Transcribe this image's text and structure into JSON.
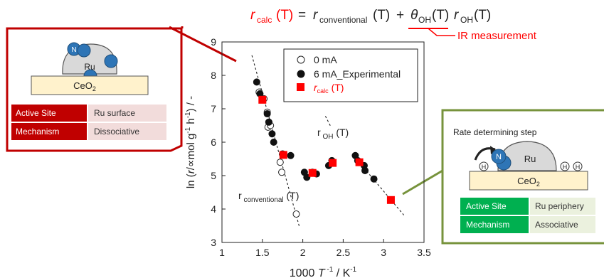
{
  "equation": {
    "lhs_symbol": "r",
    "lhs_sub": "calc",
    "lhs_arg": "(T)",
    "equals": "=",
    "term1_symbol": "r",
    "term1_sub": "conventional",
    "term1_arg": "(T)",
    "plus": "+",
    "term2_symbol": "θ",
    "term2_sub": "OH",
    "term2_arg": "(T)",
    "term3_symbol": "r",
    "term3_sub": "OH",
    "term3_arg": "(T)",
    "ir_note": "IR measurement"
  },
  "left_panel": {
    "n_atom": "N",
    "ru_label": "Ru",
    "support_label": "CeO",
    "support_sub": "2",
    "table": [
      {
        "key": "Active Site",
        "value": "Ru surface"
      },
      {
        "key": "Mechanism",
        "value": "Dissociative"
      }
    ]
  },
  "right_panel": {
    "title": "Rate determining step",
    "n_atom": "N",
    "ru_label": "Ru",
    "h_atom": "H",
    "support_label": "CeO",
    "support_sub": "2",
    "table": [
      {
        "key": "Active Site",
        "value": "Ru periphery"
      },
      {
        "key": "Mechanism",
        "value": "Associative"
      }
    ]
  },
  "colors": {
    "red": "#ff0000",
    "dark_red": "#c00000",
    "green": "#77933c",
    "green_fill": "#00b050",
    "green_light": "#ebf1de",
    "red_light": "#f2dcdb",
    "beige": "#fff2cc",
    "ru_grey": "#d9d9d9",
    "n_blue": "#2e75b6"
  },
  "chart_data": {
    "type": "scatter",
    "xlabel_prefix": "1000 ",
    "xlabel_symbol": "T",
    "xlabel_sup": " -1",
    "xlabel_suffix": " / K",
    "xlabel_sup2": "-1",
    "ylabel": "ln (r/mol g⁻¹ h⁻¹) / -",
    "ylabel_parts": {
      "p1": "ln (",
      "r": "r",
      "p2": "/∝mol g",
      "sup1": "-1",
      "p3": " h",
      "sup2": "-1",
      "p4": ") / -"
    },
    "xlim": [
      1,
      3.5
    ],
    "ylim": [
      3,
      9
    ],
    "xticks": [
      1,
      1.5,
      2,
      2.5,
      3,
      3.5
    ],
    "xtick_labels": [
      "1",
      "1.5",
      "2",
      "2.5",
      "3",
      "3.5"
    ],
    "yticks": [
      3,
      4,
      5,
      6,
      7,
      8,
      9
    ],
    "ytick_labels": [
      "3",
      "4",
      "5",
      "6",
      "7",
      "8",
      "9"
    ],
    "legend_position": "top-right",
    "series": [
      {
        "name": "0 mA",
        "marker": "open-circle",
        "points": [
          [
            1.46,
            7.5
          ],
          [
            1.52,
            7.3
          ],
          [
            1.56,
            6.9
          ],
          [
            1.57,
            6.45
          ],
          [
            1.58,
            6.6
          ],
          [
            1.6,
            6.5
          ],
          [
            1.72,
            5.4
          ],
          [
            1.74,
            5.1
          ],
          [
            1.92,
            3.85
          ]
        ]
      },
      {
        "name": "6 mA_Experimental",
        "marker": "filled-circle",
        "points": [
          [
            1.43,
            7.8
          ],
          [
            1.47,
            7.45
          ],
          [
            1.56,
            6.85
          ],
          [
            1.58,
            6.6
          ],
          [
            1.62,
            6.25
          ],
          [
            1.64,
            6.0
          ],
          [
            1.75,
            5.65
          ],
          [
            1.85,
            5.6
          ],
          [
            2.02,
            5.1
          ],
          [
            2.05,
            4.95
          ],
          [
            2.12,
            5.1
          ],
          [
            2.17,
            5.05
          ],
          [
            2.32,
            5.3
          ],
          [
            2.36,
            5.45
          ],
          [
            2.65,
            5.6
          ],
          [
            2.68,
            5.45
          ],
          [
            2.76,
            5.3
          ],
          [
            2.77,
            5.15
          ],
          [
            2.88,
            4.9
          ]
        ]
      },
      {
        "name": "r_calc (T)",
        "legend_symbol": "r",
        "legend_sub": "calc",
        "legend_arg": " (T)",
        "marker": "red-square",
        "points": [
          [
            1.5,
            7.27
          ],
          [
            1.76,
            5.62
          ],
          [
            2.12,
            5.08
          ],
          [
            2.37,
            5.38
          ],
          [
            2.7,
            5.4
          ],
          [
            3.09,
            4.27
          ]
        ]
      }
    ],
    "guides": [
      {
        "name": "conventional-line",
        "points": [
          [
            1.37,
            8.6
          ],
          [
            1.96,
            3.45
          ]
        ]
      },
      {
        "name": "oh-line-upper",
        "points": [
          [
            2.28,
            6.78
          ],
          [
            2.35,
            6.45
          ]
        ]
      },
      {
        "name": "oh-line-lower",
        "points": [
          [
            2.62,
            5.62
          ],
          [
            3.25,
            3.82
          ]
        ]
      }
    ],
    "annotations": {
      "r_oh": {
        "r": "r",
        "sub": " OH",
        "arg": " (T)"
      },
      "r_conv": {
        "r": "r",
        "sub": " conventional",
        "arg": " (T)"
      }
    }
  }
}
